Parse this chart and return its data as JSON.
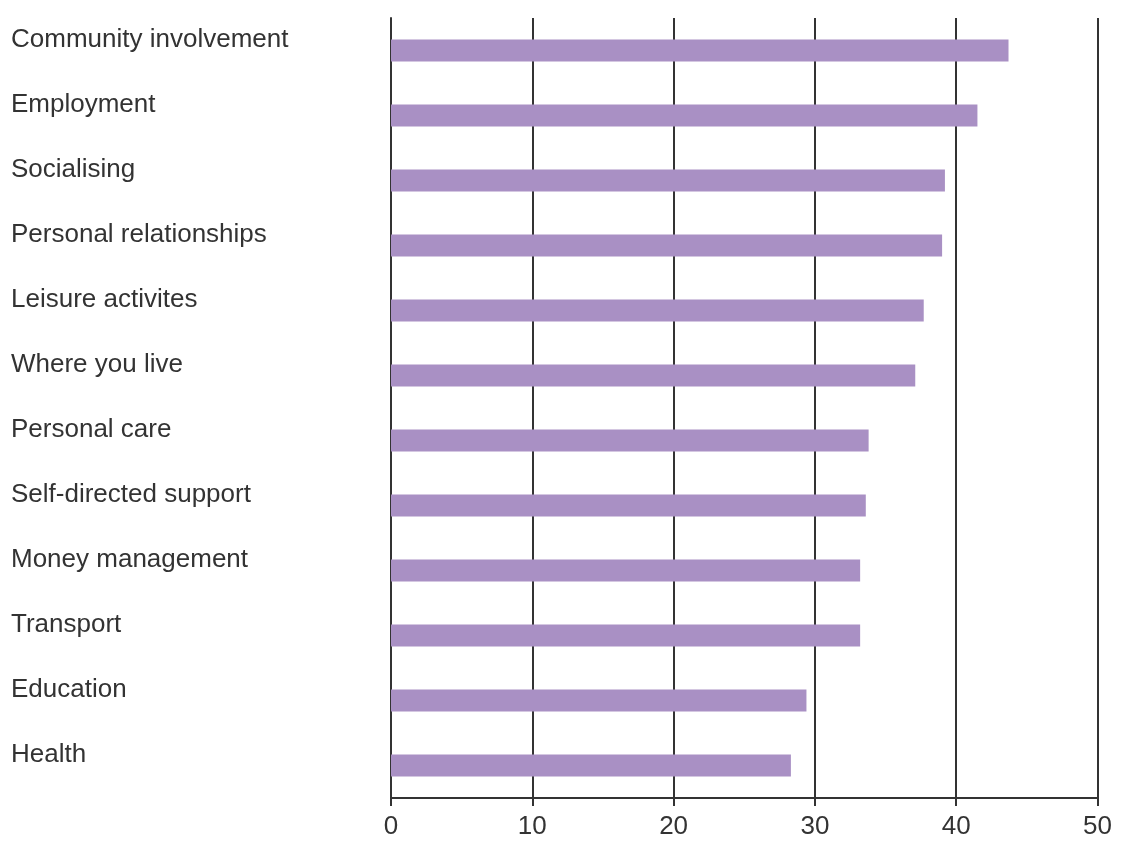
{
  "chart_data": {
    "type": "bar",
    "orientation": "horizontal",
    "categories": [
      "Community involvement",
      "Employment",
      "Socialising",
      "Personal relationships",
      "Leisure activites",
      "Where you live",
      "Personal care",
      "Self-directed support",
      "Money management",
      "Transport",
      "Education",
      "Health"
    ],
    "values": [
      43.7,
      41.5,
      39.2,
      39.0,
      37.7,
      37.1,
      33.8,
      33.6,
      33.2,
      33.2,
      29.4,
      28.3
    ],
    "color": "#a990c4",
    "xlim": [
      0,
      50
    ],
    "xticks": [
      0,
      10,
      20,
      30,
      40,
      50
    ],
    "grid": "x"
  }
}
